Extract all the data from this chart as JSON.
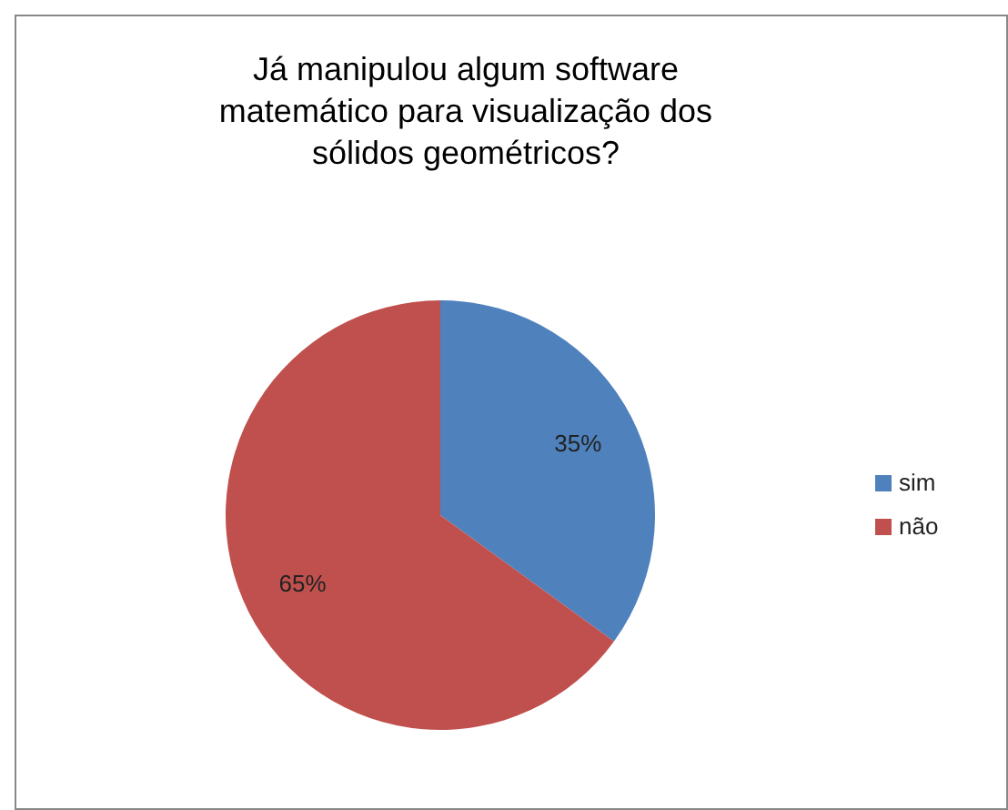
{
  "chart_data": {
    "type": "pie",
    "title": "Já manipulou algum software\nmatemático para visualização dos\nsólidos geométricos?",
    "categories": [
      "sim",
      "não"
    ],
    "values": [
      35,
      65
    ],
    "colors": [
      "#4f81bd",
      "#c0504d"
    ],
    "value_labels": [
      "35%",
      "65%"
    ],
    "legend": "right"
  }
}
